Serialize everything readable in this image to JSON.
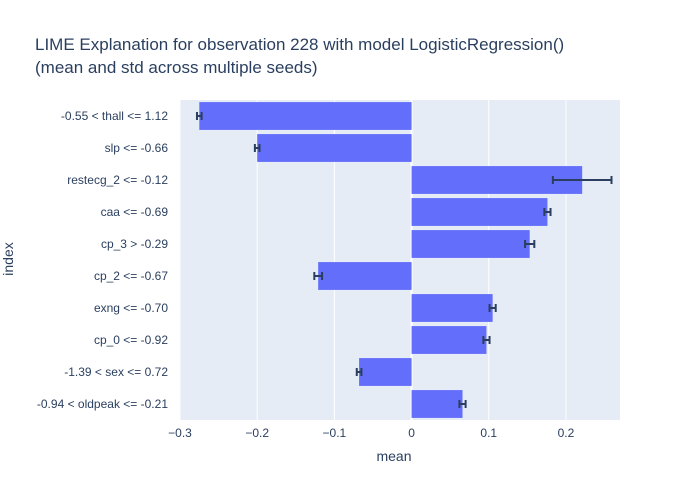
{
  "chart_data": {
    "type": "bar",
    "orientation": "horizontal",
    "title": "LIME Explanation for observation 228 with model LogisticRegression()",
    "subtitle": "(mean and std across multiple seeds)",
    "xlabel": "mean",
    "ylabel": "index",
    "xlim": [
      -0.3,
      0.27
    ],
    "xticks": [
      -0.3,
      -0.2,
      -0.1,
      0,
      0.1,
      0.2
    ],
    "xtick_labels": [
      "−0.3",
      "−0.2",
      "−0.1",
      "0",
      "0.1",
      "0.2"
    ],
    "grid": true,
    "categories": [
      "-0.55 < thall <= 1.12",
      "slp <= -0.66",
      "restecg_2 <= -0.12",
      "caa <= -0.69",
      "cp_3 > -0.29",
      "cp_2 <= -0.67",
      "exng <= -0.70",
      "cp_0 <= -0.92",
      "-1.39 < sex <= 0.72",
      "-0.94 < oldpeak <= -0.21"
    ],
    "values": [
      -0.275,
      -0.2,
      0.221,
      0.176,
      0.153,
      -0.121,
      0.105,
      0.097,
      -0.068,
      0.066
    ],
    "errors": [
      0.003,
      0.003,
      0.038,
      0.004,
      0.006,
      0.005,
      0.004,
      0.004,
      0.003,
      0.004
    ],
    "colors": {
      "bar": "#636efa",
      "plot_bg": "#e5ecf6",
      "grid": "#ffffff",
      "error_bar": "#2a3f5f",
      "text": "#2a3f5f"
    }
  }
}
